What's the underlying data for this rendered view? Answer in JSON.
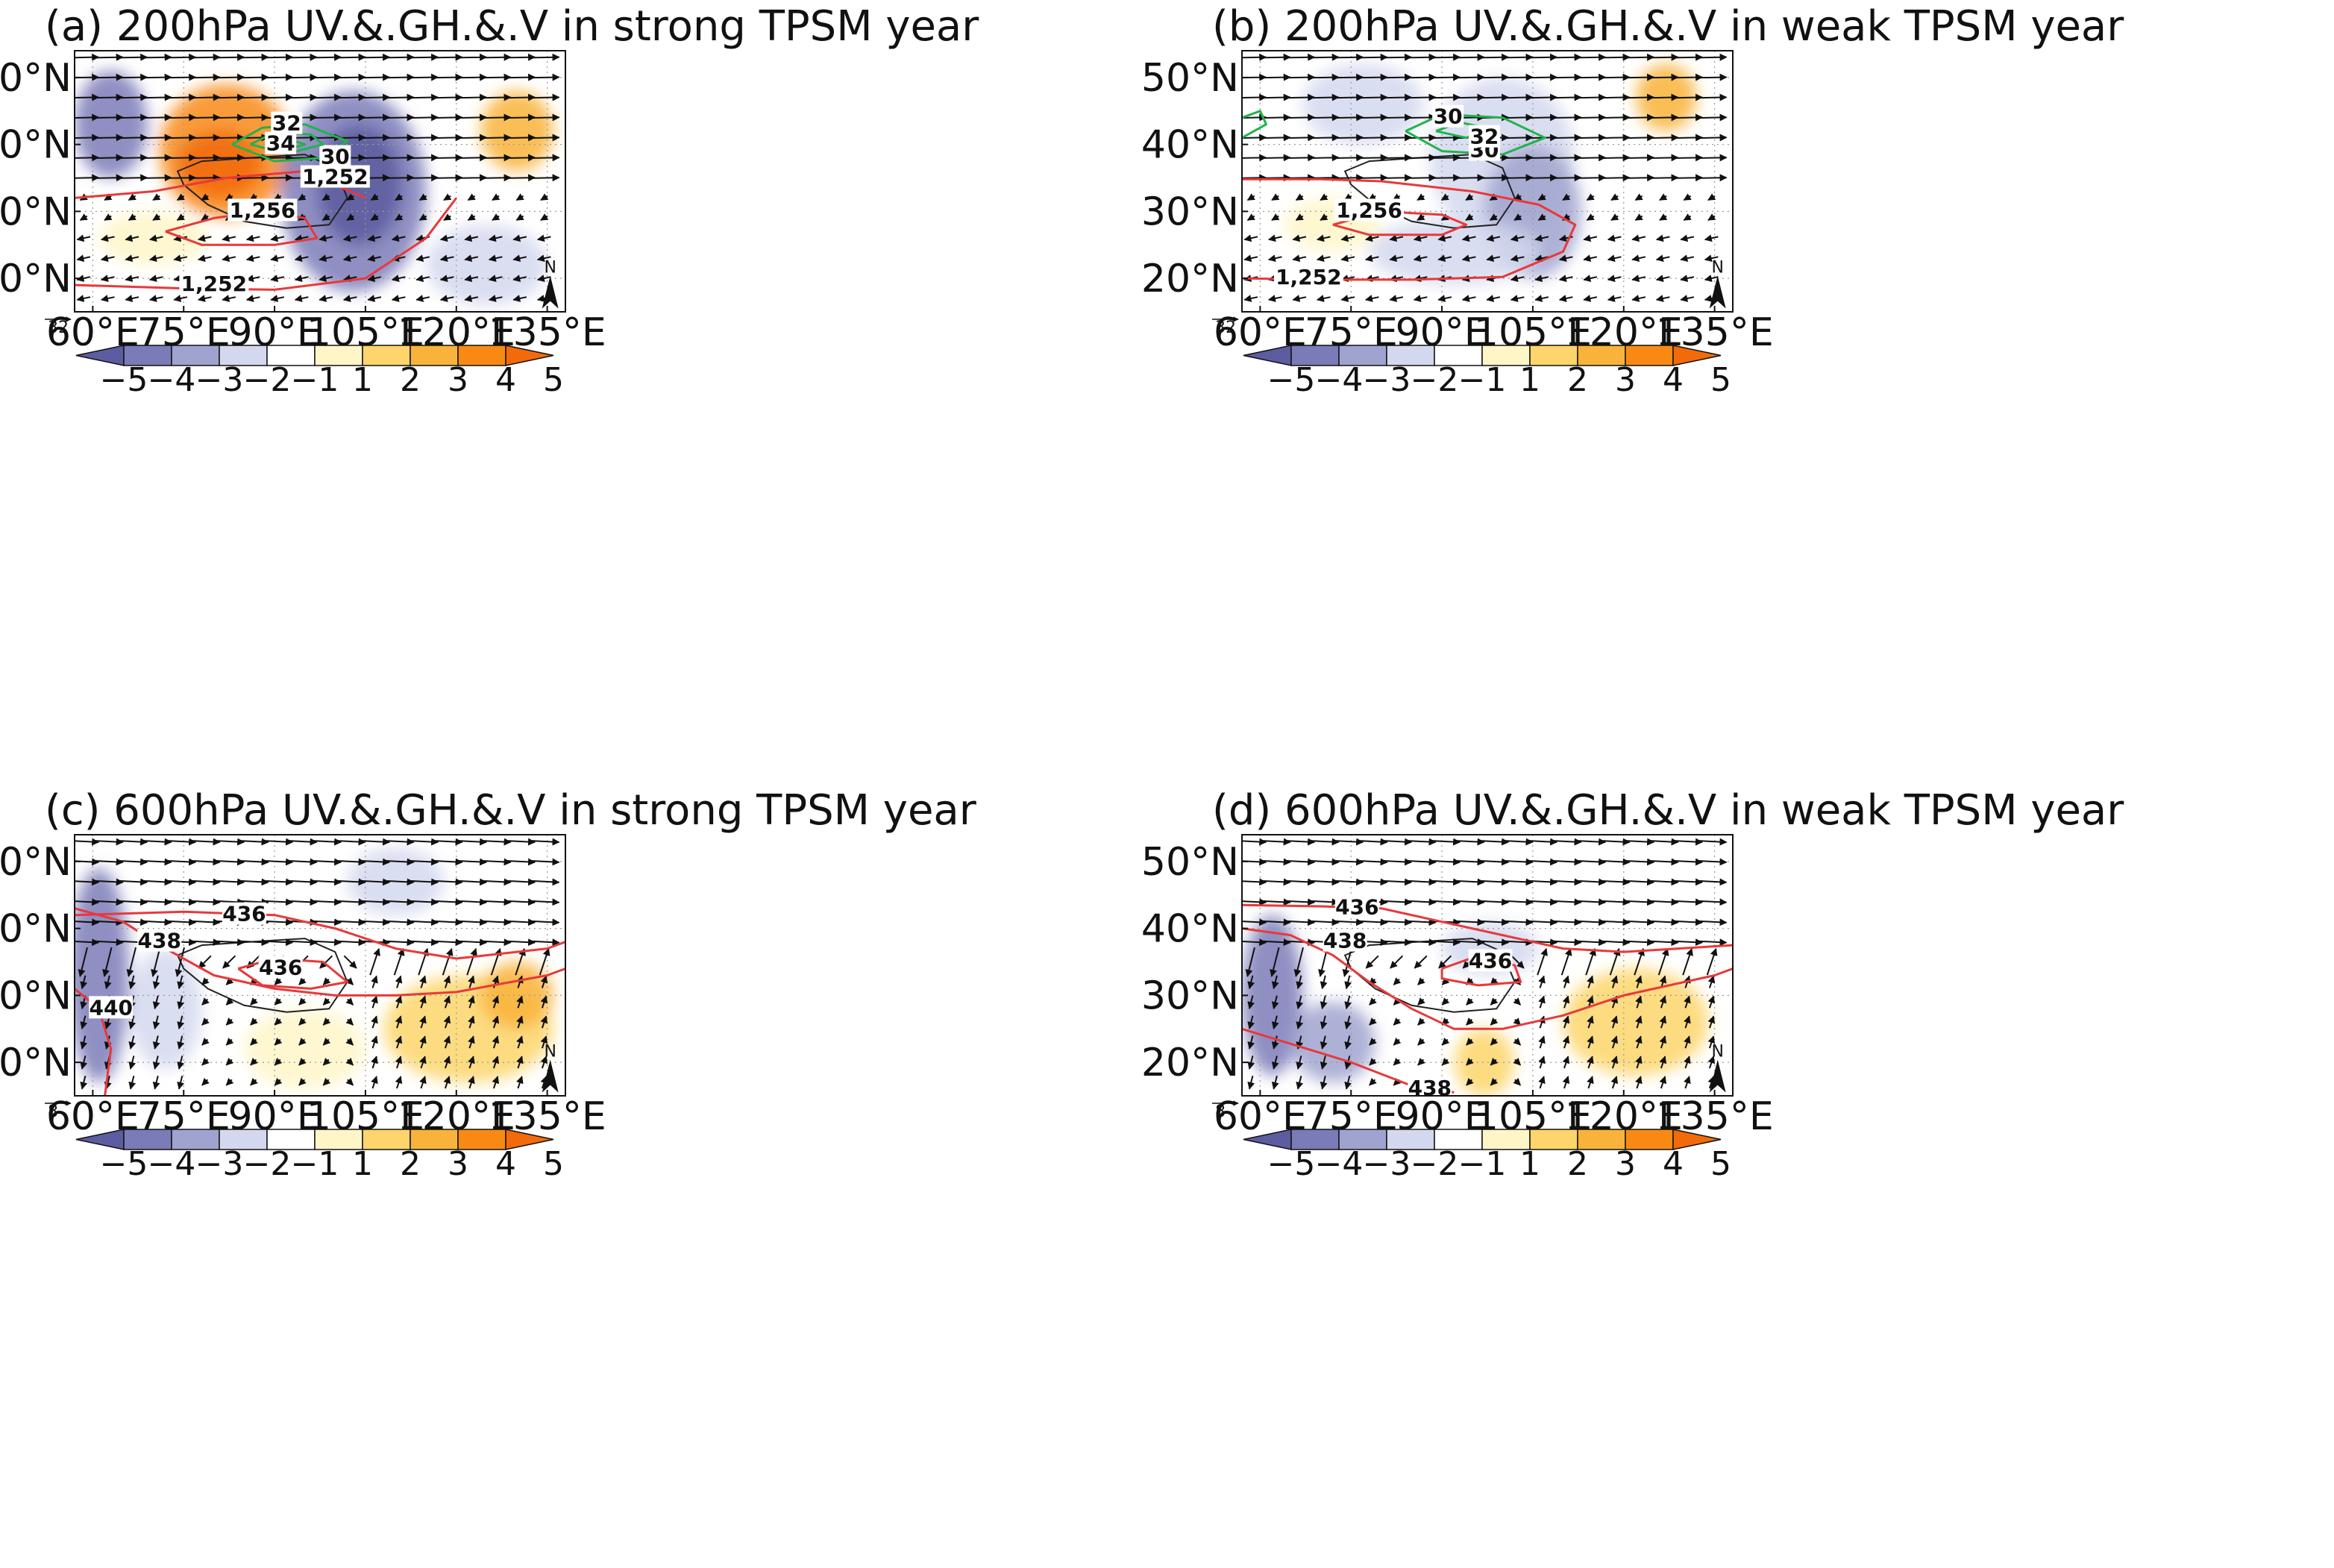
{
  "figure": {
    "colormap": [
      "#5c5ca0",
      "#7b7bb8",
      "#a0a3cf",
      "#d4d8ef",
      "#ffffff",
      "#fff6c8",
      "#fdd56a",
      "#f9b33a",
      "#f88a14",
      "#f26a0a"
    ],
    "colorbar_labels": [
      "−5",
      "−4",
      "−3",
      "−2",
      "−1",
      "1",
      "2",
      "3",
      "4",
      "5"
    ],
    "lon_ticks": [
      "60°E",
      "75°E",
      "90°E",
      "105°E",
      "120°E",
      "135°E"
    ],
    "lat_ticks": [
      "50°N",
      "40°N",
      "30°N",
      "20°N"
    ],
    "north_label": "N"
  },
  "chart_data": [
    {
      "type": "map",
      "panel_id": "a",
      "title": "(a) 200hPa UV.&.GH.&.V in strong TPSM year",
      "reference_vector": "32",
      "contour_colors": {
        "gh": "#e8393a",
        "jet": "#22b24c"
      },
      "xlim": [
        57,
        138
      ],
      "ylim": [
        15,
        54
      ],
      "shading": [
        {
          "lon": 63,
          "lat": 43,
          "rx": 6,
          "ry": 8,
          "v": -4
        },
        {
          "lon": 82,
          "lat": 39,
          "rx": 11,
          "ry": 10,
          "v": 4
        },
        {
          "lon": 81,
          "lat": 37,
          "rx": 7,
          "ry": 5,
          "v": 5
        },
        {
          "lon": 103,
          "lat": 33,
          "rx": 12,
          "ry": 15,
          "v": -4
        },
        {
          "lon": 104,
          "lat": 34,
          "rx": 7,
          "ry": 9,
          "v": -5
        },
        {
          "lon": 130,
          "lat": 42,
          "rx": 6,
          "ry": 6,
          "v": 3
        },
        {
          "lon": 70,
          "lat": 26,
          "rx": 9,
          "ry": 4,
          "v": 1
        },
        {
          "lon": 125,
          "lat": 22,
          "rx": 10,
          "ry": 6,
          "v": -2
        }
      ],
      "gh_contours": [
        {
          "label": "1,252",
          "label_lon": 80,
          "label_lat": 19,
          "points": [
            [
              57,
              19
            ],
            [
              75,
              18.5
            ],
            [
              90,
              18.3
            ],
            [
              105,
              20
            ],
            [
              115,
              26
            ],
            [
              120,
              32
            ]
          ]
        },
        {
          "label": "1,252",
          "label_lon": 100,
          "label_lat": 35,
          "points": [
            [
              57,
              32
            ],
            [
              70,
              33
            ],
            [
              82,
              35
            ],
            [
              95,
              36
            ],
            [
              100,
              34
            ],
            [
              105,
              32
            ]
          ]
        },
        {
          "label": "1,256",
          "label_lon": 88,
          "label_lat": 30,
          "points": [
            [
              72,
              27
            ],
            [
              80,
              29
            ],
            [
              88,
              30
            ],
            [
              95,
              29
            ],
            [
              97,
              26
            ],
            [
              90,
              25
            ],
            [
              78,
              25
            ],
            [
              72,
              27
            ]
          ]
        }
      ],
      "jet_contours": [
        {
          "label": "30",
          "label_lon": 100,
          "label_lat": 38,
          "points": [
            [
              83,
              40
            ],
            [
              88,
              42.5
            ],
            [
              95,
              43
            ],
            [
              102,
              40.5
            ],
            [
              98,
              38
            ],
            [
              90,
              37.5
            ],
            [
              83,
              40
            ]
          ]
        },
        {
          "label": "32",
          "label_lon": 92,
          "label_lat": 43,
          "points": [
            [
              86,
              40
            ],
            [
              90,
              41.8
            ],
            [
              96,
              41.5
            ],
            [
              98,
              40
            ],
            [
              92,
              38.6
            ],
            [
              86,
              40
            ]
          ]
        },
        {
          "label": "34",
          "label_lon": 91,
          "label_lat": 40,
          "points": [
            [
              89,
              40
            ],
            [
              92,
              40.9
            ],
            [
              95,
              40
            ],
            [
              92,
              39.2
            ],
            [
              89,
              40
            ]
          ]
        }
      ],
      "wind_pattern": "upper"
    },
    {
      "type": "map",
      "panel_id": "b",
      "title": "(b) 200hPa UV.&.GH.&.V in weak TPSM year",
      "reference_vector": "32",
      "contour_colors": {
        "gh": "#e8393a",
        "jet": "#22b24c"
      },
      "xlim": [
        57,
        138
      ],
      "ylim": [
        15,
        54
      ],
      "shading": [
        {
          "lon": 77,
          "lat": 46,
          "rx": 10,
          "ry": 6,
          "v": -2
        },
        {
          "lon": 100,
          "lat": 38,
          "rx": 12,
          "ry": 12,
          "v": -2
        },
        {
          "lon": 105,
          "lat": 30,
          "rx": 8,
          "ry": 10,
          "v": -3
        },
        {
          "lon": 127,
          "lat": 47,
          "rx": 5,
          "ry": 5,
          "v": 3
        },
        {
          "lon": 72,
          "lat": 28,
          "rx": 8,
          "ry": 4,
          "v": 1
        },
        {
          "lon": 92,
          "lat": 24,
          "rx": 14,
          "ry": 5,
          "v": -2
        }
      ],
      "gh_contours": [
        {
          "label": "1,252",
          "label_lon": 68,
          "label_lat": 20,
          "points": [
            [
              57,
              20
            ],
            [
              70,
              19.8
            ],
            [
              85,
              19.8
            ],
            [
              100,
              20.2
            ],
            [
              110,
              24
            ],
            [
              112,
              28
            ],
            [
              106,
              31
            ],
            [
              95,
              33
            ],
            [
              80,
              34.5
            ],
            [
              70,
              34.8
            ],
            [
              57,
              34.8
            ]
          ]
        },
        {
          "label": "1,256",
          "label_lon": 78,
          "label_lat": 30,
          "points": [
            [
              72,
              28
            ],
            [
              80,
              30
            ],
            [
              90,
              29.5
            ],
            [
              94,
              28
            ],
            [
              90,
              26.5
            ],
            [
              78,
              26.5
            ],
            [
              72,
              28
            ]
          ]
        }
      ],
      "jet_contours": [
        {
          "label": "30",
          "label_lon": 97,
          "label_lat": 39,
          "points": [
            [
              84,
              42
            ],
            [
              90,
              44.5
            ],
            [
              100,
              44
            ],
            [
              107,
              41
            ],
            [
              100,
              38.5
            ],
            [
              90,
              39
            ],
            [
              84,
              42
            ]
          ]
        },
        {
          "label": "32",
          "label_lon": 97,
          "label_lat": 41,
          "points": [
            [
              89,
              42
            ],
            [
              93,
              43.3
            ],
            [
              98,
              42.3
            ],
            [
              94,
              41
            ],
            [
              89,
              42
            ]
          ]
        },
        {
          "label": "30",
          "label_lon": 91,
          "label_lat": 44,
          "points": [
            [
              57,
              44
            ],
            [
              60,
              45
            ],
            [
              61,
              43
            ],
            [
              57,
              41
            ]
          ]
        }
      ],
      "wind_pattern": "upper"
    },
    {
      "type": "map",
      "panel_id": "c",
      "title": "(c) 600hPa UV.&.GH.&.V in strong TPSM year",
      "reference_vector": "8",
      "contour_colors": {
        "gh": "#e8393a",
        "jet": "#22b24c"
      },
      "xlim": [
        57,
        138
      ],
      "ylim": [
        15,
        54
      ],
      "shading": [
        {
          "lon": 61,
          "lat": 33,
          "rx": 5,
          "ry": 16,
          "v": -4
        },
        {
          "lon": 72,
          "lat": 28,
          "rx": 6,
          "ry": 9,
          "v": -2
        },
        {
          "lon": 110,
          "lat": 47,
          "rx": 8,
          "ry": 5,
          "v": -2
        },
        {
          "lon": 122,
          "lat": 25,
          "rx": 14,
          "ry": 8,
          "v": 2
        },
        {
          "lon": 130,
          "lat": 30,
          "rx": 6,
          "ry": 5,
          "v": 3
        },
        {
          "lon": 95,
          "lat": 22,
          "rx": 10,
          "ry": 6,
          "v": 1
        }
      ],
      "gh_contours": [
        {
          "label": "436",
          "label_lon": 85,
          "label_lat": 42,
          "points": [
            [
              57,
              42
            ],
            [
              75,
              42.5
            ],
            [
              90,
              42
            ],
            [
              100,
              40
            ],
            [
              110,
              37
            ],
            [
              120,
              35.5
            ],
            [
              135,
              37
            ],
            [
              138,
              38
            ]
          ]
        },
        {
          "label": "438",
          "label_lon": 71,
          "label_lat": 38,
          "points": [
            [
              57,
              43
            ],
            [
              65,
              41
            ],
            [
              72,
              37
            ],
            [
              80,
              33
            ],
            [
              90,
              31
            ],
            [
              100,
              30
            ],
            [
              110,
              30
            ],
            [
              120,
              30.5
            ],
            [
              135,
              33
            ],
            [
              138,
              34
            ]
          ]
        },
        {
          "label": "436",
          "label_lon": 91,
          "label_lat": 34,
          "points": [
            [
              84,
              34
            ],
            [
              90,
              35.5
            ],
            [
              98,
              35
            ],
            [
              102,
              32
            ],
            [
              96,
              31
            ],
            [
              88,
              31.5
            ],
            [
              84,
              34
            ]
          ]
        },
        {
          "label": "440",
          "label_lon": 63,
          "label_lat": 28,
          "points": [
            [
              57,
              31
            ],
            [
              61,
              28
            ],
            [
              63,
              22
            ],
            [
              62,
              15
            ]
          ]
        }
      ],
      "jet_contours": [],
      "wind_pattern": "middle"
    },
    {
      "type": "map",
      "panel_id": "d",
      "title": "(d) 600hPa UV.&.GH.&.V in weak TPSM year",
      "reference_vector": "8",
      "contour_colors": {
        "gh": "#e8393a",
        "jet": "#22b24c"
      },
      "xlim": [
        57,
        138
      ],
      "ylim": [
        15,
        54
      ],
      "shading": [
        {
          "lon": 62,
          "lat": 30,
          "rx": 5,
          "ry": 12,
          "v": -4
        },
        {
          "lon": 72,
          "lat": 23,
          "rx": 7,
          "ry": 6,
          "v": -3
        },
        {
          "lon": 98,
          "lat": 37,
          "rx": 8,
          "ry": 4,
          "v": -2
        },
        {
          "lon": 122,
          "lat": 26,
          "rx": 12,
          "ry": 8,
          "v": 2
        },
        {
          "lon": 97,
          "lat": 20,
          "rx": 5,
          "ry": 5,
          "v": 2
        },
        {
          "lon": 115,
          "lat": 47,
          "rx": 12,
          "ry": 5,
          "v": -1
        }
      ],
      "gh_contours": [
        {
          "label": "436",
          "label_lon": 76,
          "label_lat": 43,
          "points": [
            [
              57,
              43.5
            ],
            [
              70,
              43.3
            ],
            [
              80,
              43
            ],
            [
              90,
              41
            ],
            [
              100,
              39
            ],
            [
              110,
              37
            ],
            [
              120,
              36.5
            ],
            [
              138,
              37.5
            ]
          ]
        },
        {
          "label": "438",
          "label_lon": 74,
          "label_lat": 38,
          "points": [
            [
              57,
              40
            ],
            [
              65,
              39
            ],
            [
              72,
              36
            ],
            [
              78,
              32
            ],
            [
              85,
              28
            ],
            [
              92,
              25
            ],
            [
              100,
              25
            ],
            [
              110,
              27
            ],
            [
              120,
              30
            ],
            [
              135,
              33
            ],
            [
              138,
              34
            ]
          ]
        },
        {
          "label": "436",
          "label_lon": 98,
          "label_lat": 35,
          "points": [
            [
              90,
              34
            ],
            [
              95,
              35.6
            ],
            [
              102,
              34.5
            ],
            [
              103,
              32
            ],
            [
              96,
              31.5
            ],
            [
              90,
              32.5
            ],
            [
              90,
              34
            ]
          ]
        },
        {
          "label": "438",
          "label_lon": 88,
          "label_lat": 16,
          "points": [
            [
              57,
              25
            ],
            [
              75,
              20
            ],
            [
              85,
              16.5
            ],
            [
              92,
              15.5
            ]
          ]
        }
      ],
      "jet_contours": [],
      "wind_pattern": "middle"
    }
  ]
}
